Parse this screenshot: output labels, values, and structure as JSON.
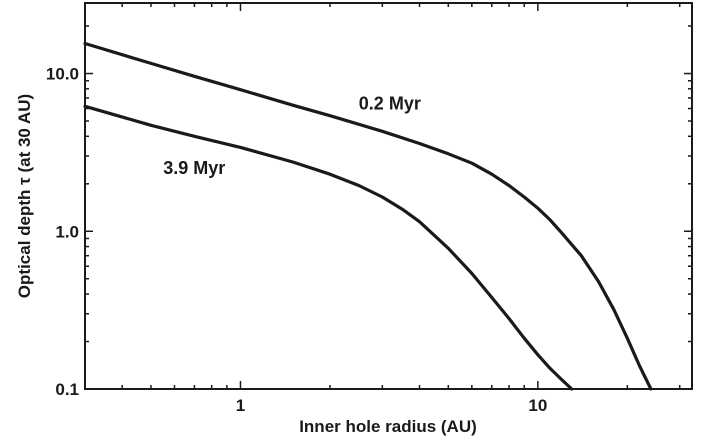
{
  "chart_data": {
    "type": "line",
    "xlabel": "Inner hole radius (AU)",
    "ylabel": "Optical depth τ (at 30 AU)",
    "xscale": "log",
    "yscale": "log",
    "xlim": [
      0.3,
      33
    ],
    "ylim": [
      0.1,
      28
    ],
    "x_ticks": [
      {
        "value": 1,
        "label": "1"
      },
      {
        "value": 10,
        "label": "10"
      }
    ],
    "y_ticks": [
      {
        "value": 0.1,
        "label": "0.1"
      },
      {
        "value": 1,
        "label": "1.0"
      },
      {
        "value": 10,
        "label": "10.0"
      }
    ],
    "grid": false,
    "legend": "none",
    "series": [
      {
        "name": "0.2 Myr",
        "color": "#1a1a1a",
        "points": [
          [
            0.3,
            15.5
          ],
          [
            0.5,
            11.6
          ],
          [
            0.7,
            9.6
          ],
          [
            1.0,
            7.9
          ],
          [
            1.5,
            6.3
          ],
          [
            2.0,
            5.4
          ],
          [
            3.0,
            4.3
          ],
          [
            4.0,
            3.6
          ],
          [
            5.0,
            3.1
          ],
          [
            6.0,
            2.7
          ],
          [
            7.0,
            2.3
          ],
          [
            8.0,
            1.95
          ],
          [
            9.0,
            1.65
          ],
          [
            10.0,
            1.4
          ],
          [
            11.0,
            1.18
          ],
          [
            12.0,
            0.98
          ],
          [
            14.0,
            0.7
          ],
          [
            16.0,
            0.48
          ],
          [
            18.0,
            0.32
          ],
          [
            20.0,
            0.21
          ],
          [
            22.0,
            0.14
          ],
          [
            24.0,
            0.1
          ]
        ]
      },
      {
        "name": "3.9 Myr",
        "color": "#1a1a1a",
        "points": [
          [
            0.3,
            6.2
          ],
          [
            0.5,
            4.7
          ],
          [
            0.7,
            4.0
          ],
          [
            1.0,
            3.4
          ],
          [
            1.5,
            2.75
          ],
          [
            2.0,
            2.3
          ],
          [
            2.5,
            1.95
          ],
          [
            3.0,
            1.65
          ],
          [
            3.5,
            1.38
          ],
          [
            4.0,
            1.15
          ],
          [
            5.0,
            0.78
          ],
          [
            6.0,
            0.54
          ],
          [
            7.0,
            0.38
          ],
          [
            8.0,
            0.28
          ],
          [
            9.0,
            0.21
          ],
          [
            10.0,
            0.165
          ],
          [
            11.0,
            0.135
          ],
          [
            12.0,
            0.115
          ],
          [
            13.0,
            0.1
          ]
        ]
      }
    ],
    "annotations": [
      {
        "text": "0.2 Myr",
        "x": 2.5,
        "y": 5.9
      },
      {
        "text": "3.9 Myr",
        "x": 0.55,
        "y": 2.3
      }
    ]
  }
}
